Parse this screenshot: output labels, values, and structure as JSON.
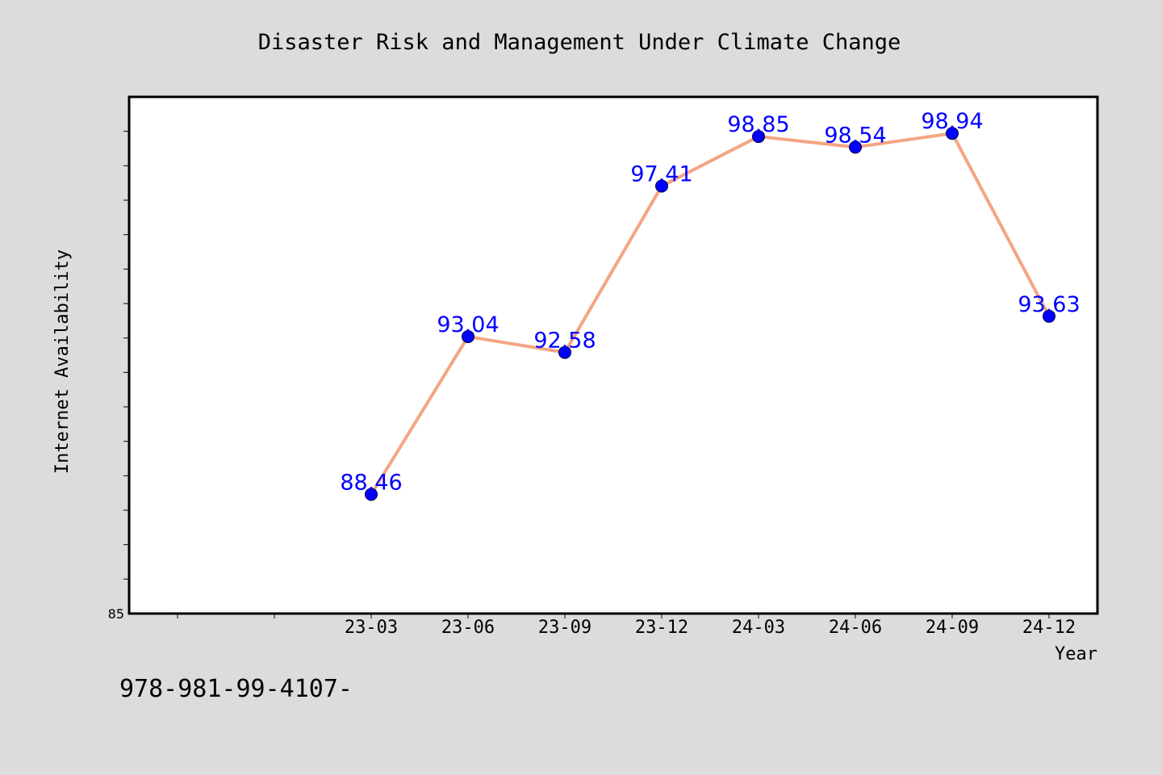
{
  "chart_data": {
    "type": "line",
    "title": "Disaster Risk and Management Under Climate Change",
    "xlabel": "Year",
    "ylabel": "Internet Availability",
    "categories": [
      "23-03",
      "23-06",
      "23-09",
      "23-12",
      "24-03",
      "24-06",
      "24-09",
      "24-12"
    ],
    "series": [
      {
        "values": [
          88.46,
          93.04,
          92.58,
          97.41,
          98.85,
          98.54,
          98.94,
          93.63
        ],
        "labels": [
          "88.46",
          "93.04",
          "92.58",
          "97.41",
          "98.85",
          "98.54",
          "98.94",
          "93.63"
        ]
      }
    ],
    "ylim": [
      85,
      100
    ],
    "yticks_labeled": [
      "85"
    ],
    "grid": false,
    "legend": "none",
    "footnote": "978-981-99-4107-",
    "colors": {
      "background": "#dcdcdc",
      "plot_background": "#ffffff",
      "line": "#f4a582",
      "marker": "#0000ff",
      "data_label": "#0000ff"
    }
  }
}
